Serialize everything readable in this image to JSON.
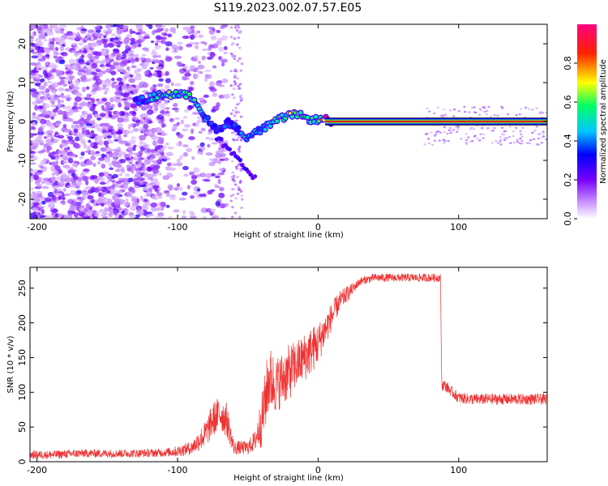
{
  "figure_title": "S119.2023.002.07.57.E05",
  "chart_data": [
    {
      "type": "heatmap",
      "title": "",
      "xlabel": "Height of straight line (km)",
      "ylabel": "Frequency (Hz)",
      "xlim": [
        -205,
        163
      ],
      "ylim": [
        -25,
        25
      ],
      "xticks": [
        -200,
        -100,
        0,
        100
      ],
      "yticks": [
        -20,
        -10,
        0,
        10,
        20
      ],
      "colorbar": {
        "label": "Normalized spectral amplitude",
        "range": [
          0,
          1
        ],
        "ticks": [
          "0.0",
          "0.2",
          "0.4",
          "0.6",
          "0.8"
        ],
        "colors": [
          "#ffffff",
          "#7700ff",
          "#0000ff",
          "#00c8ff",
          "#00ff00",
          "#ffff00",
          "#ff0000",
          "#ff0080"
        ]
      },
      "ridge": {
        "x": [
          -130,
          -120,
          -110,
          -100,
          -90,
          -85,
          -80,
          -75,
          -70,
          -65,
          -60,
          -55,
          -50,
          -45,
          -40,
          -35,
          -30,
          -25,
          -20,
          -15,
          -10,
          -5,
          0,
          5,
          10,
          50,
          100,
          163
        ],
        "y": [
          5,
          6,
          7,
          7,
          6.5,
          4,
          1,
          -1.5,
          -2,
          0,
          -1,
          -3,
          -4,
          -3,
          -2,
          -1,
          0,
          1,
          1.5,
          2,
          1,
          0.5,
          0.5,
          0.5,
          0,
          0,
          0,
          0
        ],
        "amplitude": [
          0.35,
          0.45,
          0.55,
          0.55,
          0.5,
          0.45,
          0.4,
          0.35,
          0.35,
          0.35,
          0.35,
          0.4,
          0.45,
          0.45,
          0.45,
          0.5,
          0.55,
          0.55,
          0.6,
          0.6,
          0.5,
          0.5,
          0.5,
          0.9,
          1.0,
          1.0,
          1.0,
          1.0
        ]
      }
    },
    {
      "type": "line",
      "title": "",
      "xlabel": "Height of straight line (km)",
      "ylabel": "SNR (10 * v/v)",
      "xlim": [
        -205,
        163
      ],
      "ylim": [
        0,
        280
      ],
      "xticks": [
        -200,
        -100,
        0,
        100
      ],
      "yticks": [
        0,
        50,
        100,
        150,
        200,
        250
      ],
      "series": [
        {
          "color": "#ee3333",
          "x": [
            -205,
            -190,
            -170,
            -150,
            -130,
            -110,
            -100,
            -90,
            -80,
            -75,
            -70,
            -65,
            -60,
            -55,
            -50,
            -45,
            -40,
            -35,
            -30,
            -25,
            -20,
            -15,
            -10,
            -5,
            0,
            5,
            10,
            15,
            20,
            25,
            30,
            40,
            50,
            60,
            70,
            80,
            87,
            88,
            90,
            100,
            110,
            120,
            130,
            140,
            150,
            163
          ],
          "y": [
            10,
            10,
            12,
            12,
            12,
            13,
            15,
            20,
            40,
            60,
            70,
            60,
            20,
            20,
            20,
            30,
            60,
            120,
            110,
            120,
            130,
            140,
            150,
            160,
            170,
            190,
            210,
            230,
            240,
            250,
            260,
            265,
            265,
            265,
            265,
            265,
            265,
            110,
            110,
            92,
            90,
            90,
            90,
            90,
            90,
            90
          ],
          "noise": [
            6,
            6,
            6,
            6,
            6,
            6,
            8,
            10,
            20,
            25,
            25,
            25,
            10,
            10,
            10,
            15,
            40,
            50,
            40,
            40,
            40,
            35,
            35,
            35,
            30,
            25,
            20,
            15,
            12,
            8,
            6,
            6,
            6,
            6,
            6,
            6,
            6,
            8,
            8,
            8,
            8,
            8,
            8,
            8,
            8,
            8
          ]
        }
      ]
    }
  ]
}
